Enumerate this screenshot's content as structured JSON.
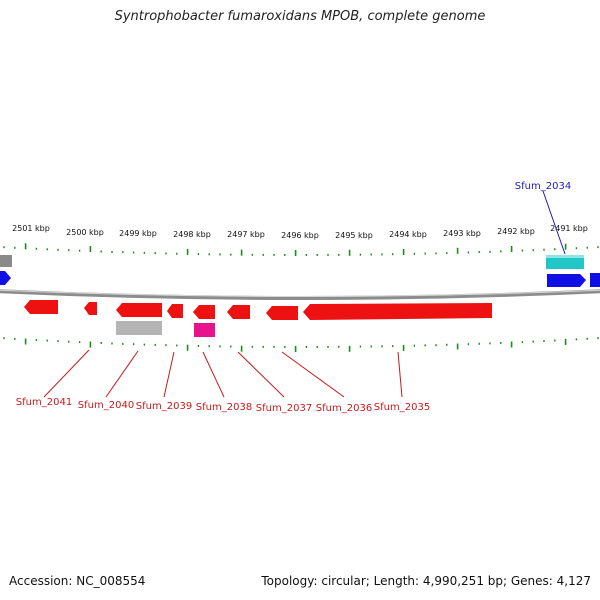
{
  "title": "Syntrophobacter fumaroxidans MPOB, complete genome",
  "footer": {
    "accession": "Accession: NC_008554",
    "summary": "Topology: circular; Length: 4,990,251 bp; Genes: 4,127"
  },
  "colors": {
    "forward_gene": "#1010e6",
    "reverse_gene": "#ee1111",
    "highlight_gene": "#22c6c6",
    "pseudo_gene": "#b4b4b4",
    "rna_gene": "#e8128c",
    "tick": "#1c8a1c",
    "backbone": "#8c8c8c",
    "label_blue": "#1c1cb4",
    "label_red": "#c81a1a"
  },
  "kbp_labels": [
    {
      "text": "2501 kbp"
    },
    {
      "text": "2500 kbp"
    },
    {
      "text": "2499 kbp"
    },
    {
      "text": "2498 kbp"
    },
    {
      "text": "2497 kbp"
    },
    {
      "text": "2496 kbp"
    },
    {
      "text": "2495 kbp"
    },
    {
      "text": "2494 kbp"
    },
    {
      "text": "2493 kbp"
    },
    {
      "text": "2492 kbp"
    },
    {
      "text": "2491 kbp"
    }
  ],
  "gene_labels": [
    {
      "text": "Sfum_2034",
      "color": "#1c1cb4"
    },
    {
      "text": "Sfum_2035",
      "color": "#c81a1a"
    },
    {
      "text": "Sfum_2036",
      "color": "#c81a1a"
    },
    {
      "text": "Sfum_2037",
      "color": "#c81a1a"
    },
    {
      "text": "Sfum_2038",
      "color": "#c81a1a"
    },
    {
      "text": "Sfum_2039",
      "color": "#c81a1a"
    },
    {
      "text": "Sfum_2040",
      "color": "#c81a1a"
    },
    {
      "text": "Sfum_2041",
      "color": "#c81a1a"
    }
  ]
}
